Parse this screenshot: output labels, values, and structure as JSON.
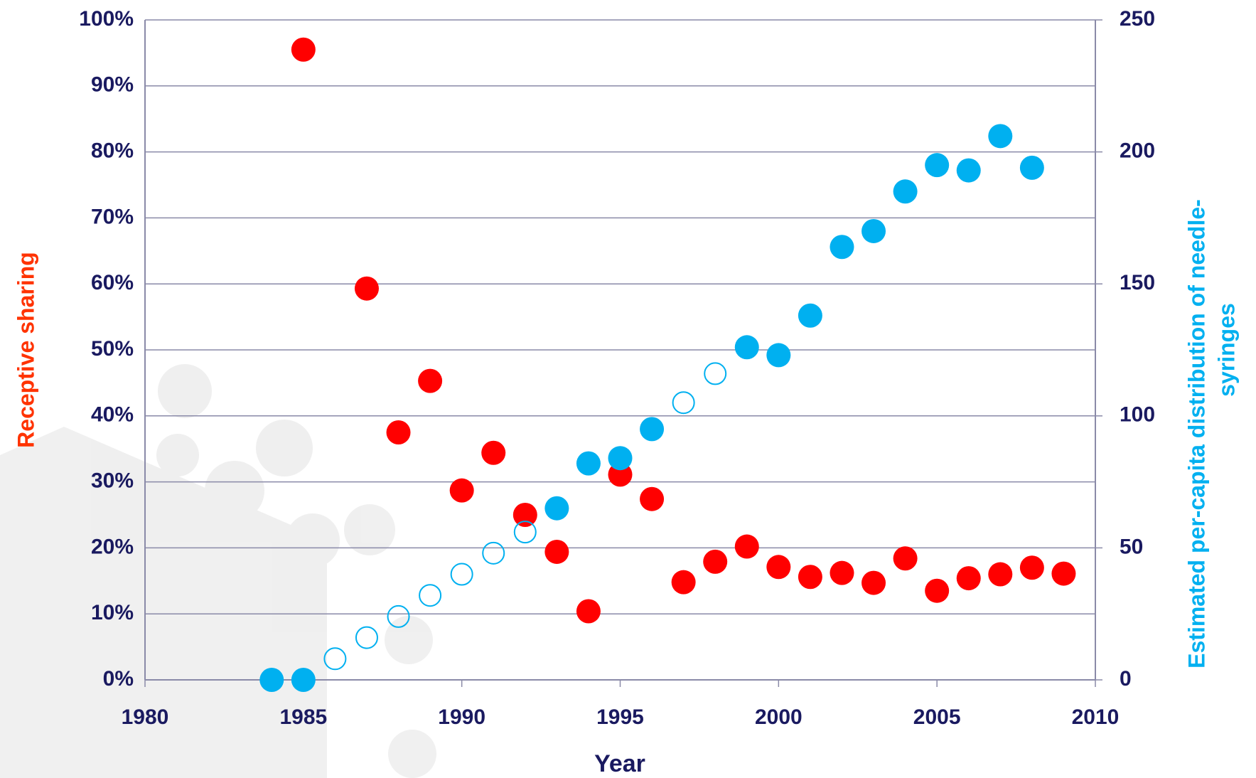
{
  "chart_data": {
    "type": "scatter",
    "xlabel": "Year",
    "ylabel": "Receptive sharing",
    "y2label": [
      "Estimated per-capita distribution of needle-",
      "syringes"
    ],
    "xlim": [
      1980,
      2010
    ],
    "xticks": [
      1980,
      1985,
      1990,
      1995,
      2000,
      2005,
      2010
    ],
    "ylim": [
      0,
      100
    ],
    "yticks": [
      {
        "value": 0,
        "label": "0%"
      },
      {
        "value": 10,
        "label": "10%"
      },
      {
        "value": 20,
        "label": "20%"
      },
      {
        "value": 30,
        "label": "30%"
      },
      {
        "value": 40,
        "label": "40%"
      },
      {
        "value": 50,
        "label": "50%"
      },
      {
        "value": 60,
        "label": "60%"
      },
      {
        "value": 70,
        "label": "70%"
      },
      {
        "value": 80,
        "label": "80%"
      },
      {
        "value": 90,
        "label": "90%"
      },
      {
        "value": 100,
        "label": "100%"
      }
    ],
    "y2lim": [
      0,
      250
    ],
    "y2ticks": [
      0,
      50,
      100,
      150,
      200,
      250
    ],
    "grid": true,
    "series": [
      {
        "color": "#ff0000",
        "filled": true,
        "axis": "y",
        "x": [
          1985,
          1987,
          1988,
          1989,
          1990,
          1991,
          1992,
          1993,
          1994,
          1995,
          1996,
          1997,
          1998,
          1999,
          2000,
          2001,
          2002,
          2003,
          2004,
          2005,
          2006,
          2007,
          2008,
          2009
        ],
        "values": [
          95.5,
          59.3,
          37.5,
          45.3,
          28.7,
          34.4,
          25,
          19.4,
          10.4,
          31.1,
          27.4,
          14.8,
          17.9,
          20.2,
          17.1,
          15.6,
          16.2,
          14.7,
          18.4,
          13.5,
          15.4,
          16,
          17,
          16.1
        ]
      },
      {
        "color": "#00b0f0",
        "filled": true,
        "axis": "y2",
        "x": [
          1984,
          1985,
          1993,
          1994,
          1995,
          1996,
          1999,
          2000,
          2001,
          2002,
          2003,
          2004,
          2005,
          2006,
          2007,
          2008
        ],
        "values": [
          0,
          0,
          65,
          82,
          84,
          95,
          126,
          123,
          138,
          164,
          170,
          185,
          195,
          193,
          206,
          194
        ]
      },
      {
        "color": "#00b0f0",
        "filled": false,
        "axis": "y2",
        "x": [
          1986,
          1987,
          1988,
          1989,
          1990,
          1991,
          1992,
          1997,
          1998
        ],
        "values": [
          8,
          16,
          24,
          32,
          40,
          48,
          56,
          105,
          116
        ]
      }
    ]
  }
}
